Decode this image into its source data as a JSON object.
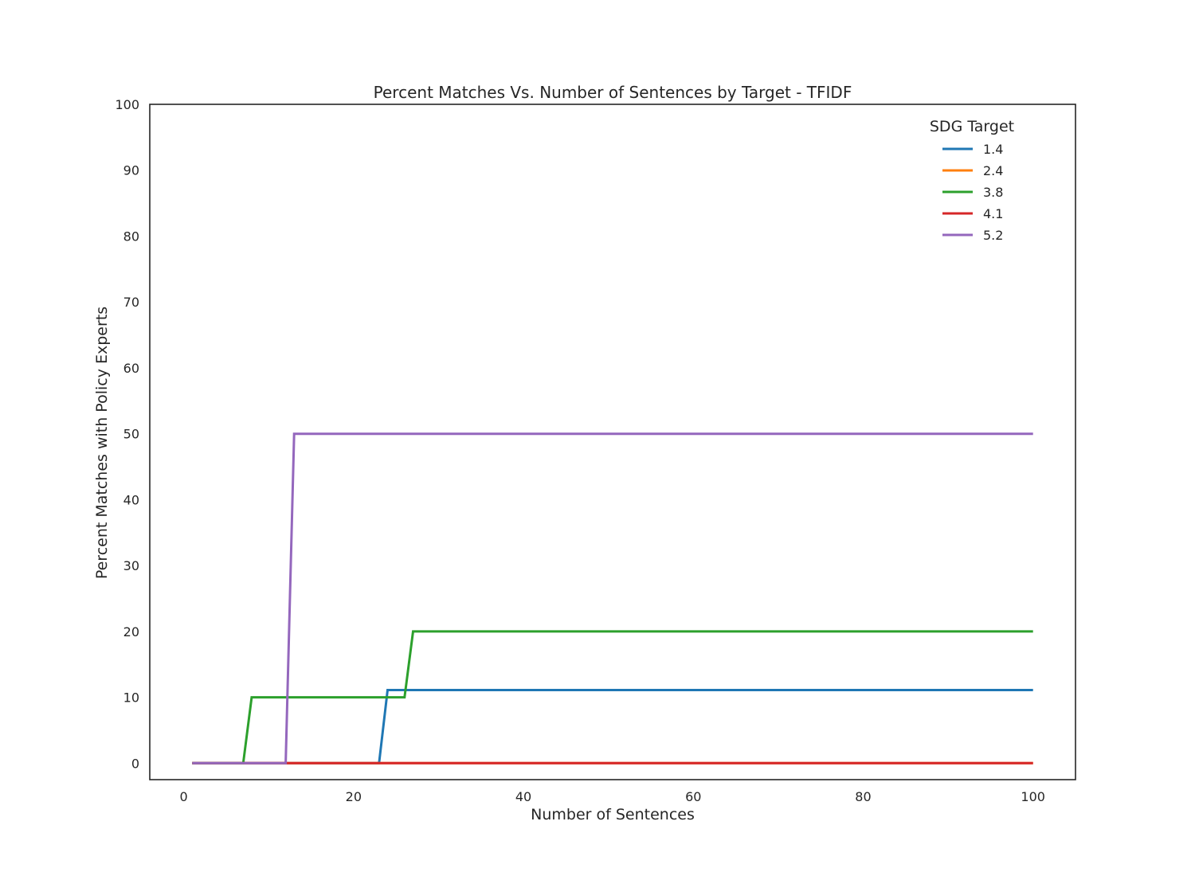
{
  "chart_data": {
    "type": "line",
    "title": "Percent Matches Vs. Number of Sentences by Target - TFIDF",
    "xlabel": "Number of Sentences",
    "ylabel": "Percent Matches with Policy Experts",
    "xlim": [
      -4,
      105
    ],
    "ylim": [
      -2.5,
      100
    ],
    "xticks": [
      0,
      20,
      40,
      60,
      80,
      100
    ],
    "yticks": [
      0,
      10,
      20,
      30,
      40,
      50,
      60,
      70,
      80,
      90,
      100
    ],
    "grid": false,
    "legend": {
      "title": "SDG Target",
      "placement": "top-right"
    },
    "series": [
      {
        "name": "1.4",
        "color": "#1f77b4",
        "x": [
          1,
          23,
          24,
          100
        ],
        "y": [
          0,
          0,
          11.1,
          11.1
        ]
      },
      {
        "name": "2.4",
        "color": "#ff7f0e",
        "x": [
          1,
          100
        ],
        "y": [
          0,
          0
        ]
      },
      {
        "name": "3.8",
        "color": "#2ca02c",
        "x": [
          1,
          7,
          8,
          26,
          27,
          100
        ],
        "y": [
          0,
          0,
          10,
          10,
          20,
          20
        ]
      },
      {
        "name": "4.1",
        "color": "#d62728",
        "x": [
          1,
          100
        ],
        "y": [
          0,
          0
        ]
      },
      {
        "name": "5.2",
        "color": "#9467bd",
        "x": [
          1,
          12,
          13,
          100
        ],
        "y": [
          0,
          0,
          50,
          50
        ]
      }
    ]
  }
}
